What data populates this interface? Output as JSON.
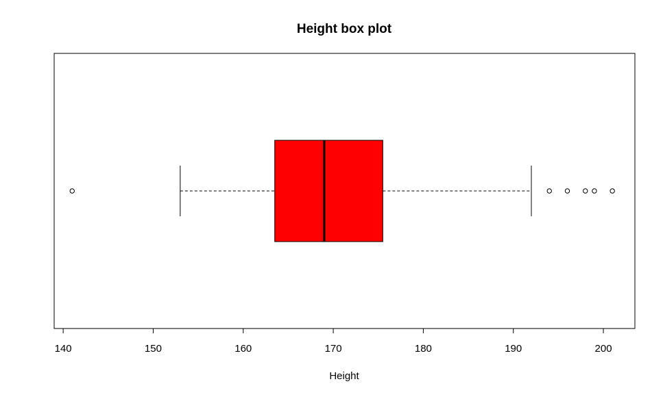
{
  "chart_data": {
    "type": "boxplot",
    "orientation": "horizontal",
    "title": "Height box plot",
    "xlabel": "Height",
    "ylabel": "",
    "xlim": [
      139,
      203.5
    ],
    "x_ticks": [
      140,
      150,
      160,
      170,
      180,
      190,
      200
    ],
    "box": {
      "whisker_low": 153,
      "q1": 163.5,
      "median": 169,
      "q3": 175.5,
      "whisker_high": 192,
      "fill_color": "#ff0000",
      "outliers": [
        141,
        194,
        196,
        198,
        199,
        201
      ]
    },
    "grid": false,
    "legend": "none"
  }
}
